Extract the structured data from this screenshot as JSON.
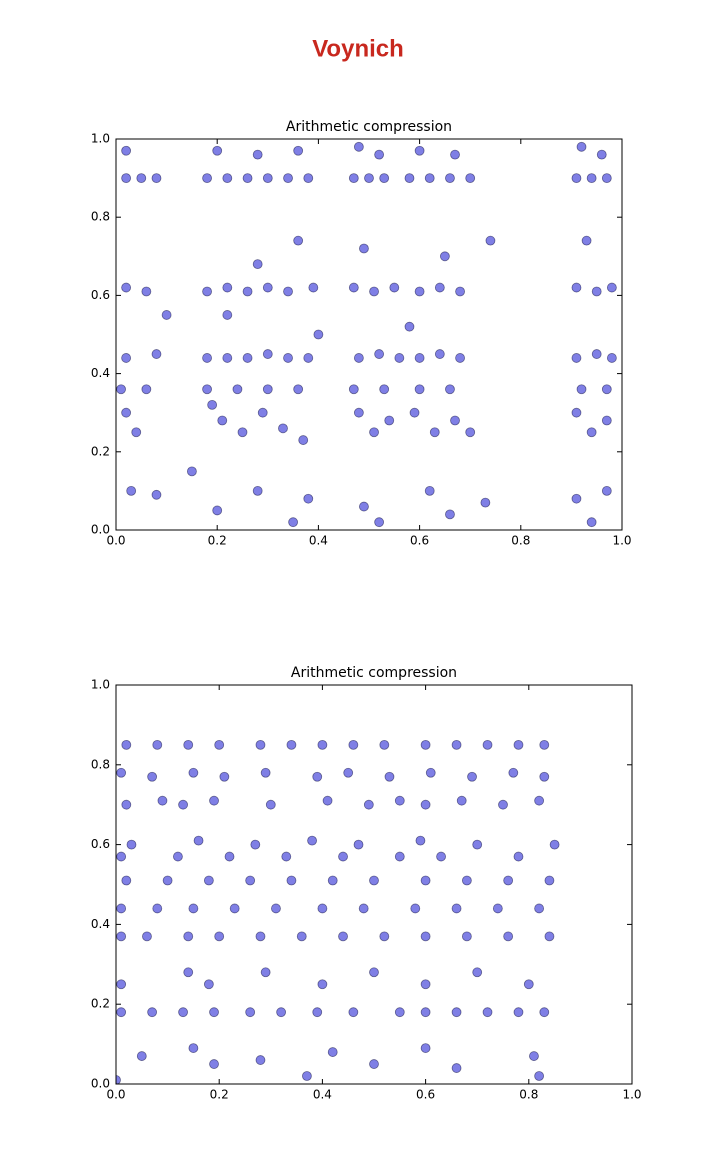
{
  "header": {
    "title": "Voynich"
  },
  "chart_data": [
    {
      "type": "scatter",
      "title": "Arithmetic compression",
      "color": "#0000cc",
      "xlim": [
        0,
        1
      ],
      "ylim": [
        0,
        1
      ],
      "xticks": [
        {
          "value": 0,
          "label": "0.0"
        },
        0.2,
        0.4,
        0.6,
        0.8,
        {
          "value": 1,
          "label": "1.0"
        }
      ],
      "yticks": [
        {
          "value": 0,
          "label": "0.0"
        },
        0.2,
        0.4,
        0.6,
        0.8,
        {
          "value": 1,
          "label": "1.0"
        }
      ],
      "x": [
        0.02,
        0.05,
        0.08,
        0.18,
        0.22,
        0.26,
        0.3,
        0.34,
        0.38,
        0.47,
        0.5,
        0.53,
        0.58,
        0.62,
        0.66,
        0.7,
        0.91,
        0.94,
        0.97,
        0.02,
        0.2,
        0.28,
        0.36,
        0.48,
        0.52,
        0.6,
        0.67,
        0.92,
        0.96,
        0.02,
        0.06,
        0.18,
        0.22,
        0.26,
        0.3,
        0.34,
        0.39,
        0.47,
        0.51,
        0.55,
        0.6,
        0.64,
        0.68,
        0.91,
        0.95,
        0.98,
        0.36,
        0.74,
        0.49,
        0.65,
        0.28,
        0.93,
        0.4,
        0.58,
        0.1,
        0.22,
        0.02,
        0.08,
        0.18,
        0.22,
        0.26,
        0.3,
        0.34,
        0.38,
        0.48,
        0.52,
        0.56,
        0.6,
        0.64,
        0.68,
        0.91,
        0.95,
        0.98,
        0.01,
        0.06,
        0.18,
        0.24,
        0.3,
        0.36,
        0.47,
        0.53,
        0.6,
        0.66,
        0.92,
        0.97,
        0.02,
        0.04,
        0.19,
        0.21,
        0.25,
        0.29,
        0.33,
        0.37,
        0.48,
        0.51,
        0.54,
        0.59,
        0.63,
        0.67,
        0.7,
        0.91,
        0.94,
        0.97,
        0.03,
        0.08,
        0.15,
        0.2,
        0.28,
        0.35,
        0.38,
        0.49,
        0.52,
        0.62,
        0.66,
        0.73,
        0.91,
        0.94,
        0.97
      ],
      "values": [
        0.9,
        0.9,
        0.9,
        0.9,
        0.9,
        0.9,
        0.9,
        0.9,
        0.9,
        0.9,
        0.9,
        0.9,
        0.9,
        0.9,
        0.9,
        0.9,
        0.9,
        0.9,
        0.9,
        0.97,
        0.97,
        0.96,
        0.97,
        0.98,
        0.96,
        0.97,
        0.96,
        0.98,
        0.96,
        0.62,
        0.61,
        0.61,
        0.62,
        0.61,
        0.62,
        0.61,
        0.62,
        0.62,
        0.61,
        0.62,
        0.61,
        0.62,
        0.61,
        0.62,
        0.61,
        0.62,
        0.74,
        0.74,
        0.72,
        0.7,
        0.68,
        0.74,
        0.5,
        0.52,
        0.55,
        0.55,
        0.44,
        0.45,
        0.44,
        0.44,
        0.44,
        0.45,
        0.44,
        0.44,
        0.44,
        0.45,
        0.44,
        0.44,
        0.45,
        0.44,
        0.44,
        0.45,
        0.44,
        0.36,
        0.36,
        0.36,
        0.36,
        0.36,
        0.36,
        0.36,
        0.36,
        0.36,
        0.36,
        0.36,
        0.36,
        0.3,
        0.25,
        0.32,
        0.28,
        0.25,
        0.3,
        0.26,
        0.23,
        0.3,
        0.25,
        0.28,
        0.3,
        0.25,
        0.28,
        0.25,
        0.3,
        0.25,
        0.28,
        0.1,
        0.09,
        0.15,
        0.05,
        0.1,
        0.02,
        0.08,
        0.06,
        0.02,
        0.1,
        0.04,
        0.07,
        0.08,
        0.02,
        0.1
      ]
    },
    {
      "type": "scatter",
      "title": "Arithmetic compression",
      "color": "#0000cc",
      "xlim": [
        0,
        1
      ],
      "ylim": [
        0,
        1
      ],
      "xticks": [
        {
          "value": 0,
          "label": "0.0"
        },
        0.2,
        0.4,
        0.6,
        0.8,
        {
          "value": 1,
          "label": "1.0"
        }
      ],
      "yticks": [
        {
          "value": 0,
          "label": "0.0"
        },
        0.2,
        0.4,
        0.6,
        0.8,
        {
          "value": 1,
          "label": "1.0"
        }
      ],
      "x": [
        0.02,
        0.08,
        0.14,
        0.2,
        0.28,
        0.34,
        0.4,
        0.46,
        0.52,
        0.6,
        0.66,
        0.72,
        0.78,
        0.83,
        0.01,
        0.07,
        0.15,
        0.21,
        0.29,
        0.39,
        0.45,
        0.53,
        0.61,
        0.69,
        0.77,
        0.83,
        0.02,
        0.09,
        0.13,
        0.19,
        0.3,
        0.41,
        0.49,
        0.55,
        0.6,
        0.67,
        0.75,
        0.82,
        0.03,
        0.16,
        0.27,
        0.38,
        0.47,
        0.59,
        0.7,
        0.85,
        0.01,
        0.12,
        0.22,
        0.33,
        0.44,
        0.55,
        0.63,
        0.78,
        0.02,
        0.1,
        0.18,
        0.26,
        0.34,
        0.42,
        0.5,
        0.6,
        0.68,
        0.76,
        0.84,
        0.01,
        0.08,
        0.15,
        0.23,
        0.31,
        0.4,
        0.48,
        0.58,
        0.66,
        0.74,
        0.82,
        0.01,
        0.06,
        0.14,
        0.2,
        0.28,
        0.36,
        0.44,
        0.52,
        0.6,
        0.68,
        0.76,
        0.84,
        0.01,
        0.14,
        0.18,
        0.29,
        0.4,
        0.5,
        0.6,
        0.7,
        0.8,
        0.01,
        0.07,
        0.13,
        0.19,
        0.26,
        0.32,
        0.39,
        0.46,
        0.55,
        0.6,
        0.66,
        0.72,
        0.78,
        0.83,
        0.0,
        0.05,
        0.15,
        0.19,
        0.28,
        0.37,
        0.42,
        0.5,
        0.6,
        0.66,
        0.81,
        0.82
      ],
      "values": [
        0.85,
        0.85,
        0.85,
        0.85,
        0.85,
        0.85,
        0.85,
        0.85,
        0.85,
        0.85,
        0.85,
        0.85,
        0.85,
        0.85,
        0.78,
        0.77,
        0.78,
        0.77,
        0.78,
        0.77,
        0.78,
        0.77,
        0.78,
        0.77,
        0.78,
        0.77,
        0.7,
        0.71,
        0.7,
        0.71,
        0.7,
        0.71,
        0.7,
        0.71,
        0.7,
        0.71,
        0.7,
        0.71,
        0.6,
        0.61,
        0.6,
        0.61,
        0.6,
        0.61,
        0.6,
        0.6,
        0.57,
        0.57,
        0.57,
        0.57,
        0.57,
        0.57,
        0.57,
        0.57,
        0.51,
        0.51,
        0.51,
        0.51,
        0.51,
        0.51,
        0.51,
        0.51,
        0.51,
        0.51,
        0.51,
        0.44,
        0.44,
        0.44,
        0.44,
        0.44,
        0.44,
        0.44,
        0.44,
        0.44,
        0.44,
        0.44,
        0.37,
        0.37,
        0.37,
        0.37,
        0.37,
        0.37,
        0.37,
        0.37,
        0.37,
        0.37,
        0.37,
        0.37,
        0.25,
        0.28,
        0.25,
        0.28,
        0.25,
        0.28,
        0.25,
        0.28,
        0.25,
        0.18,
        0.18,
        0.18,
        0.18,
        0.18,
        0.18,
        0.18,
        0.18,
        0.18,
        0.18,
        0.18,
        0.18,
        0.18,
        0.18,
        0.01,
        0.07,
        0.09,
        0.05,
        0.06,
        0.02,
        0.08,
        0.05,
        0.09,
        0.04,
        0.07,
        0.02
      ]
    }
  ]
}
